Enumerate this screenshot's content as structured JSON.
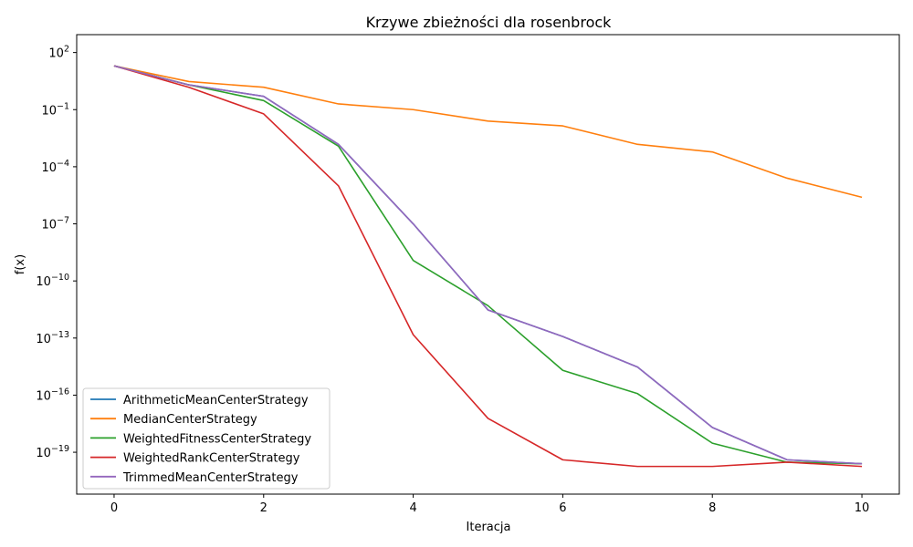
{
  "chart_data": {
    "type": "line",
    "title": "Krzywe zbieżności dla rosenbrock",
    "xlabel": "Iteracja",
    "ylabel": "f(x)",
    "yscale": "log",
    "xlim": [
      -0.5,
      10.5
    ],
    "ylim_exponent": [
      -21.2,
      103
    ],
    "x_ticks": [
      0,
      2,
      4,
      6,
      8,
      10
    ],
    "x_tick_labels": [
      "0",
      "2",
      "4",
      "6",
      "8",
      "10"
    ],
    "y_tick_exponents": [
      2,
      -1,
      -4,
      -7,
      -10,
      -13,
      -16,
      -19
    ],
    "y_tick_labels": [
      "10^2",
      "10^-1",
      "10^-4",
      "10^-7",
      "10^-10",
      "10^-13",
      "10^-16",
      "10^-19"
    ],
    "grid": false,
    "legend_position": "lower left",
    "x": [
      0,
      1,
      2,
      3,
      4,
      5,
      6,
      7,
      8,
      9,
      10
    ],
    "series": [
      {
        "name": "ArithmeticMeanCenterStrategy",
        "color": "#1f77b4",
        "values": [
          20,
          2,
          0.5,
          0.0015,
          1e-07,
          3e-12,
          1.2e-13,
          3e-15,
          2e-18,
          4e-20,
          2.5e-20
        ]
      },
      {
        "name": "MedianCenterStrategy",
        "color": "#ff7f0e",
        "values": [
          20,
          3,
          1.5,
          0.2,
          0.1,
          0.025,
          0.014,
          0.0015,
          0.0006,
          2.5e-05,
          2.5e-06
        ]
      },
      {
        "name": "WeightedFitnessCenterStrategy",
        "color": "#2ca02c",
        "values": [
          20,
          2,
          0.3,
          0.0012,
          1.2e-09,
          5e-12,
          2e-15,
          1.2e-16,
          3e-19,
          3e-20,
          2.5e-20
        ]
      },
      {
        "name": "WeightedRankCenterStrategy",
        "color": "#d62728",
        "values": [
          20,
          1.5,
          0.06,
          1e-05,
          1.5e-13,
          6e-18,
          4e-20,
          1.8e-20,
          1.8e-20,
          3e-20,
          1.8e-20
        ]
      },
      {
        "name": "TrimmedMeanCenterStrategy",
        "color": "#9467bd",
        "values": [
          20,
          2,
          0.5,
          0.0015,
          1e-07,
          3e-12,
          1.2e-13,
          3e-15,
          2e-18,
          4e-20,
          2.5e-20
        ]
      }
    ]
  }
}
